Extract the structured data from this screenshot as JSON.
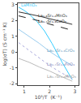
{
  "chart_data": {
    "type": "line",
    "x_label": "10³/T  (K⁻¹)",
    "y_label": "log(σT) (S cm⁻¹ K)",
    "xlim": [
      0.75,
      3.15
    ],
    "ylim": [
      -2.1,
      3.1
    ],
    "xticks": [
      1,
      2,
      3
    ],
    "yticks": [
      -2,
      -1,
      0,
      1,
      2,
      3
    ],
    "grid": false,
    "series": [
      {
        "name": "LaMnO₃",
        "color": "#33ccff",
        "line_style": "solid",
        "x": [
          0.78,
          1.0,
          1.2,
          1.5,
          1.8,
          2.1,
          2.5,
          2.9
        ],
        "values": [
          2.85,
          2.65,
          2.4,
          1.95,
          1.35,
          0.55,
          -0.65,
          -1.75
        ]
      },
      {
        "name": "La₀.₈Sr₀.₂MnO₃",
        "color": "#333333",
        "line_style": "solid",
        "x": [
          0.78,
          1.2,
          1.6,
          2.0,
          2.4,
          2.9
        ],
        "values": [
          2.55,
          2.42,
          2.28,
          2.12,
          1.96,
          1.76
        ]
      },
      {
        "name": "La₀.₇Sr₀.₃CoO₃",
        "color": "#222222",
        "line_style": "dashed",
        "x": [
          0.78,
          1.2,
          1.6,
          2.0,
          2.4,
          2.9
        ],
        "values": [
          2.3,
          2.15,
          1.98,
          1.78,
          1.6,
          1.38
        ]
      },
      {
        "name": "La₀.₇Sr₀.₃CrO₃",
        "color": "#99ccee",
        "line_style": "solid",
        "x": [
          0.78,
          1.2,
          1.6,
          2.0,
          2.4,
          2.9
        ],
        "values": [
          1.45,
          1.0,
          0.55,
          0.05,
          -0.38,
          -0.85
        ]
      },
      {
        "name": "La₀.₇Sr₀.₃FeO₃",
        "color": "#aaaadd",
        "line_style": "dotted",
        "x": [
          0.78,
          1.2,
          1.6,
          2.0,
          2.4,
          2.9
        ],
        "values": [
          0.6,
          0.1,
          -0.4,
          -0.85,
          -1.25,
          -1.7
        ]
      },
      {
        "name": "La₀.₇Sr₀.₃MnO₃",
        "color": "#bbbbbb",
        "line_style": "solid",
        "x": [
          0.78,
          1.2,
          1.6,
          2.0,
          2.4,
          2.9
        ],
        "values": [
          -0.4,
          -0.65,
          -0.95,
          -1.2,
          -1.5,
          -1.85
        ]
      }
    ],
    "annotations": [
      {
        "text": "LaMnO₃",
        "x": 0.8,
        "y": 2.98,
        "color": "#33ccff"
      },
      {
        "text": "La₀.₈Sr₀.₂MnO₃",
        "x": 1.5,
        "y": 2.32,
        "color": "#333333"
      },
      {
        "text": "La₀.₇Sr₀.₃CoO₃",
        "x": 1.5,
        "y": 1.95,
        "color": "#222222"
      },
      {
        "text": "La₀.₇Sr₀.₃CrO₃",
        "x": 1.85,
        "y": 0.12,
        "color": "#6699bb"
      },
      {
        "text": "La₀.₇Sr₀.₃FeO₃",
        "x": 1.85,
        "y": -0.78,
        "color": "#8888bb"
      },
      {
        "text": "La₀.₇Sr₀.₃MnO₃",
        "x": 1.85,
        "y": -1.55,
        "color": "#999999"
      }
    ]
  }
}
